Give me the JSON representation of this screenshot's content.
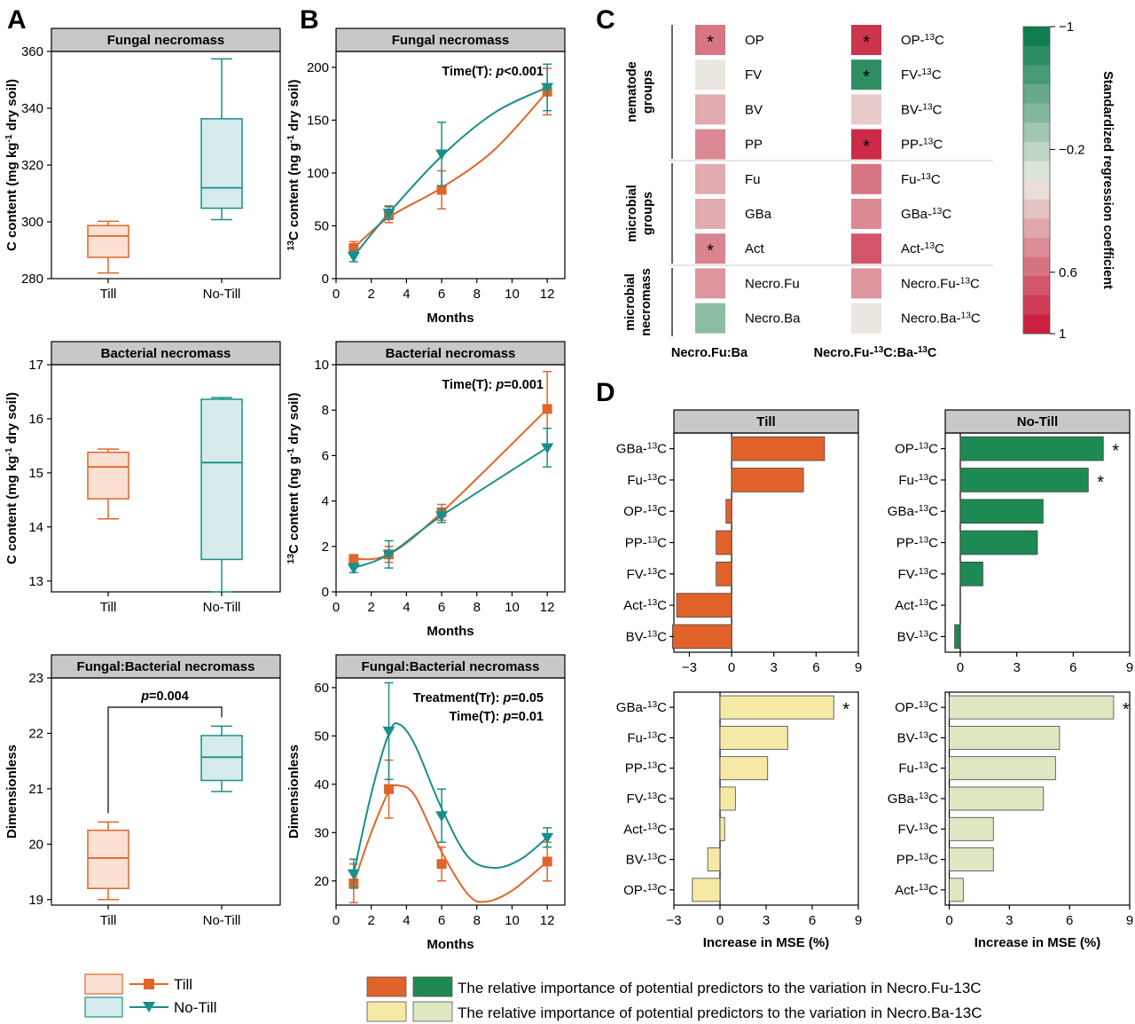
{
  "panel_letters": [
    "A",
    "B",
    "C",
    "D"
  ],
  "colors": {
    "till": "#e0652b",
    "notill": "#1a8f8a",
    "till_box_fill": "#fbe1d3",
    "notill_box_fill": "#d6ebec",
    "header_fill": "#c8c8c8",
    "rf_till_fu": "#e1632a",
    "rf_notill_fu": "#1d8a54",
    "rf_till_ba": "#f6e9a6",
    "rf_notill_ba": "#dde8c3"
  },
  "legend_A": {
    "till": "Till",
    "notill": "No-Till"
  },
  "legend_D": {
    "fu_text": "The relative importance of potential predictors to the variation in Necro.Fu-13C",
    "ba_text": "The relative importance of potential predictors to the variation in Necro.Ba-13C"
  },
  "chart_data": [
    {
      "id": "A1",
      "type": "box",
      "title": "Fungal necromass",
      "ylabel": "C content (mg kg-1 dry soil)",
      "categories": [
        "Till",
        "No-Till"
      ],
      "ylim": [
        280,
        360
      ],
      "yticks": [
        280,
        300,
        320,
        340,
        360
      ],
      "boxes": [
        {
          "name": "Till",
          "min": 282,
          "q1": 287.5,
          "median": 295,
          "q3": 298.7,
          "max": 300.2
        },
        {
          "name": "No-Till",
          "min": 300.8,
          "q1": 304.8,
          "median": 312,
          "q3": 336.3,
          "max": 357.4
        }
      ]
    },
    {
      "id": "A2",
      "type": "box",
      "title": "Bacterial necromass",
      "ylabel": "C content (mg kg-1 dry soil)",
      "categories": [
        "Till",
        "No-Till"
      ],
      "ylim": [
        12.8,
        17
      ],
      "yticks": [
        13,
        14,
        15,
        16,
        17
      ],
      "boxes": [
        {
          "name": "Till",
          "min": 14.15,
          "q1": 14.52,
          "median": 15.11,
          "q3": 15.38,
          "max": 15.44
        },
        {
          "name": "No-Till",
          "min": 12.8,
          "q1": 13.4,
          "median": 15.19,
          "q3": 16.36,
          "max": 16.39
        }
      ]
    },
    {
      "id": "A3",
      "type": "box",
      "title": "Fungal:Bacterial necromass",
      "ylabel": "Dimensionless",
      "categories": [
        "Till",
        "No-Till"
      ],
      "ylim": [
        18.9,
        23
      ],
      "yticks": [
        19,
        20,
        21,
        22,
        23
      ],
      "annotation": "p=0.004",
      "boxes": [
        {
          "name": "Till",
          "min": 19.0,
          "q1": 19.2,
          "median": 19.75,
          "q3": 20.25,
          "max": 20.4
        },
        {
          "name": "No-Till",
          "min": 20.95,
          "q1": 21.15,
          "median": 21.57,
          "q3": 21.96,
          "max": 22.13
        }
      ]
    },
    {
      "id": "B1",
      "type": "line",
      "title": "Fungal necromass",
      "ylabel": "13C content (ng g-1 dry soil)",
      "xlabel": "Months",
      "xlim": [
        0,
        13
      ],
      "xticks": [
        0,
        2,
        4,
        6,
        8,
        10,
        12
      ],
      "ylim": [
        0,
        215
      ],
      "yticks": [
        0,
        50,
        100,
        150,
        200
      ],
      "annotations": [
        "Time(T): p<0.001"
      ],
      "series": [
        {
          "name": "Till",
          "x": [
            1,
            3,
            6,
            12
          ],
          "y": [
            29,
            61,
            84,
            177
          ],
          "err": [
            6,
            8,
            18,
            22
          ],
          "curve": [
            [
              1,
              29
            ],
            [
              3,
              58
            ],
            [
              6,
              86
            ],
            [
              9,
              122
            ],
            [
              12,
              177
            ]
          ]
        },
        {
          "name": "No-Till",
          "x": [
            1,
            3,
            6,
            12
          ],
          "y": [
            21,
            62,
            118,
            181
          ],
          "err": [
            5,
            6,
            30,
            22
          ],
          "curve": [
            [
              1,
              21
            ],
            [
              3,
              62
            ],
            [
              6,
              116
            ],
            [
              9,
              157
            ],
            [
              12,
              181
            ]
          ]
        }
      ]
    },
    {
      "id": "B2",
      "type": "line",
      "title": "Bacterial necromass",
      "ylabel": "13C content (ng g-1 dry soil)",
      "xlabel": "Months",
      "xlim": [
        0,
        13
      ],
      "xticks": [
        0,
        2,
        4,
        6,
        8,
        10,
        12
      ],
      "ylim": [
        0,
        10
      ],
      "yticks": [
        0,
        2,
        4,
        6,
        8,
        10
      ],
      "annotations": [
        "Time(T): p=0.001"
      ],
      "series": [
        {
          "name": "Till",
          "x": [
            1,
            3,
            6,
            12
          ],
          "y": [
            1.45,
            1.65,
            3.5,
            8.05
          ],
          "err": [
            0.15,
            0.35,
            0.35,
            1.65
          ],
          "curve": [
            [
              1,
              1.45
            ],
            [
              3,
              1.65
            ],
            [
              6,
              3.5
            ],
            [
              12,
              8.05
            ]
          ]
        },
        {
          "name": "No-Till",
          "x": [
            1,
            3,
            6,
            12
          ],
          "y": [
            1.05,
            1.65,
            3.35,
            6.35
          ],
          "err": [
            0.2,
            0.6,
            0.3,
            0.85
          ],
          "curve": [
            [
              1,
              1.05
            ],
            [
              3,
              1.65
            ],
            [
              6,
              3.35
            ],
            [
              12,
              6.35
            ]
          ]
        }
      ]
    },
    {
      "id": "B3",
      "type": "line",
      "title": "Fungal:Bacterial necromass",
      "ylabel": "Dimensionless",
      "xlabel": "Months",
      "xlim": [
        0,
        13
      ],
      "xticks": [
        0,
        2,
        4,
        6,
        8,
        10,
        12
      ],
      "ylim": [
        15,
        62
      ],
      "yticks": [
        20,
        30,
        40,
        50,
        60
      ],
      "annotations": [
        "Treatment(Tr): p=0.05",
        "Time(T): p=0.01"
      ],
      "series": [
        {
          "name": "Till",
          "x": [
            1,
            3,
            6,
            12
          ],
          "y": [
            19.5,
            39,
            23.5,
            24
          ],
          "err": [
            4,
            6,
            3.5,
            4
          ],
          "curve": [
            [
              1,
              19.5
            ],
            [
              2,
              30
            ],
            [
              3,
              38.5
            ],
            [
              3.6,
              39.7
            ],
            [
              4.5,
              37.5
            ],
            [
              6,
              26
            ],
            [
              7.5,
              17.2
            ],
            [
              8.5,
              15.7
            ],
            [
              10,
              18
            ],
            [
              12,
              24
            ]
          ]
        },
        {
          "name": "No-Till",
          "x": [
            1,
            3,
            6,
            12
          ],
          "y": [
            21.5,
            51,
            33.5,
            29
          ],
          "err": [
            3,
            10,
            5.5,
            2
          ],
          "curve": [
            [
              1,
              21.5
            ],
            [
              2,
              38
            ],
            [
              3,
              50.5
            ],
            [
              3.6,
              52.4
            ],
            [
              4.5,
              48
            ],
            [
              6,
              35
            ],
            [
              7.5,
              25
            ],
            [
              9,
              22.7
            ],
            [
              10.5,
              24.5
            ],
            [
              12,
              29
            ]
          ]
        }
      ]
    },
    {
      "id": "C",
      "type": "heatmap",
      "colorbar_label": "Standardized regression coefficient",
      "colorbar_ticks": [
        -1,
        -0.2,
        0.6,
        1
      ],
      "groups": [
        {
          "label": "nematode groups",
          "rows": [
            0,
            3
          ]
        },
        {
          "label": "microbial groups",
          "rows": [
            4,
            6
          ]
        },
        {
          "label": "microbial necromass",
          "rows": [
            7,
            8
          ]
        }
      ],
      "columns": [
        {
          "title": "Necro.Fu:Ba",
          "rows": [
            {
              "label": "OP",
              "value": 0.55,
              "sig": true
            },
            {
              "label": "FV",
              "value": 0.02,
              "sig": false
            },
            {
              "label": "BV",
              "value": 0.3,
              "sig": false
            },
            {
              "label": "PP",
              "value": 0.45,
              "sig": false
            },
            {
              "label": "Fu",
              "value": 0.3,
              "sig": false
            },
            {
              "label": "GBa",
              "value": 0.3,
              "sig": false
            },
            {
              "label": "Act",
              "value": 0.48,
              "sig": true
            },
            {
              "label": "Necro.Fu",
              "value": 0.4,
              "sig": false
            },
            {
              "label": "Necro.Ba",
              "value": -0.4,
              "sig": false
            }
          ]
        },
        {
          "title": "Necro.Fu-13C:Ba-13C",
          "rows": [
            {
              "label": "OP-13C",
              "value": 0.85,
              "sig": true
            },
            {
              "label": "FV-13C",
              "value": -0.8,
              "sig": true
            },
            {
              "label": "BV-13C",
              "value": 0.15,
              "sig": false
            },
            {
              "label": "PP-13C",
              "value": 0.9,
              "sig": true
            },
            {
              "label": "Fu-13C",
              "value": 0.55,
              "sig": false
            },
            {
              "label": "GBa-13C",
              "value": 0.45,
              "sig": false
            },
            {
              "label": "Act-13C",
              "value": 0.7,
              "sig": false
            },
            {
              "label": "Necro.Fu-13C",
              "value": 0.4,
              "sig": false
            },
            {
              "label": "Necro.Ba-13C",
              "value": 0.02,
              "sig": false
            }
          ]
        }
      ]
    },
    {
      "id": "D1",
      "type": "bar",
      "orientation": "horizontal",
      "title": "Till",
      "xlabel": "",
      "xlim": [
        -4.1,
        9
      ],
      "xticks": [
        -3,
        0,
        3,
        6,
        9
      ],
      "categories": [
        "GBa-13C",
        "Fu-13C",
        "OP-13C",
        "PP-13C",
        "FV-13C",
        "Act-13C",
        "BV-13C"
      ],
      "values": [
        6.6,
        5.1,
        -0.4,
        -1.1,
        -1.1,
        -3.9,
        -4.2
      ],
      "sig": [
        false,
        false,
        false,
        false,
        false,
        false,
        false
      ]
    },
    {
      "id": "D2",
      "type": "bar",
      "orientation": "horizontal",
      "title": "No-Till",
      "xlabel": "",
      "xlim": [
        -0.8,
        9
      ],
      "xticks": [
        0,
        3,
        6,
        9
      ],
      "categories": [
        "OP-13C",
        "Fu-13C",
        "GBa-13C",
        "PP-13C",
        "FV-13C",
        "Act-13C",
        "BV-13C"
      ],
      "values": [
        7.6,
        6.8,
        4.4,
        4.1,
        1.2,
        0,
        -0.3
      ],
      "sig": [
        true,
        true,
        false,
        false,
        false,
        false,
        false
      ]
    },
    {
      "id": "D3",
      "type": "bar",
      "orientation": "horizontal",
      "title": "",
      "xlabel": "Increase in MSE (%)",
      "xlim": [
        -3,
        9
      ],
      "xticks": [
        -3,
        0,
        3,
        6,
        9
      ],
      "categories": [
        "GBa-13C",
        "Fu-13C",
        "PP-13C",
        "FV-13C",
        "Act-13C",
        "BV-13C",
        "OP-13C"
      ],
      "values": [
        7.4,
        4.4,
        3.1,
        1.0,
        0.3,
        -0.8,
        -1.8
      ],
      "sig": [
        true,
        false,
        false,
        false,
        false,
        false,
        false
      ]
    },
    {
      "id": "D4",
      "type": "bar",
      "orientation": "horizontal",
      "title": "",
      "xlabel": "Increase in MSE (%)",
      "xlim": [
        -0.2,
        9
      ],
      "xticks": [
        0,
        3,
        6,
        9
      ],
      "categories": [
        "OP-13C",
        "BV-13C",
        "Fu-13C",
        "GBa-13C",
        "FV-13C",
        "PP-13C",
        "Act-13C"
      ],
      "values": [
        8.2,
        5.5,
        5.3,
        4.7,
        2.2,
        2.2,
        0.7
      ],
      "sig": [
        true,
        false,
        false,
        false,
        false,
        false,
        false
      ]
    }
  ]
}
